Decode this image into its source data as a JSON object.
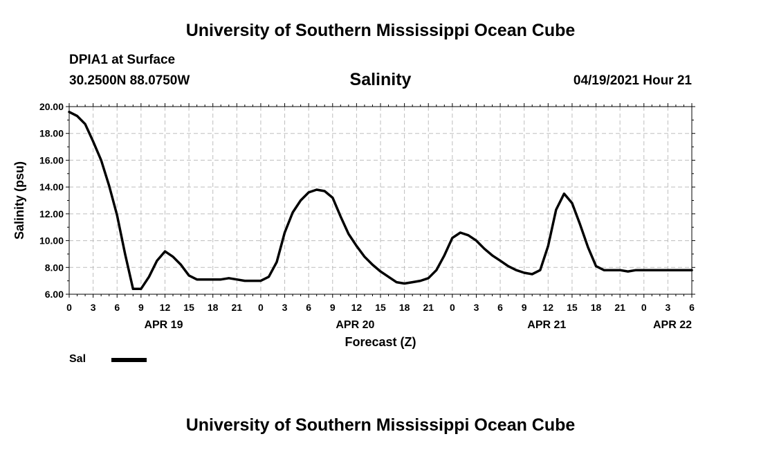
{
  "header": {
    "title_top": "University of Southern Mississippi Ocean Cube",
    "station": "DPIA1 at Surface",
    "coords": "30.2500N  88.0750W",
    "variable": "Salinity",
    "datetime": "04/19/2021 Hour 21",
    "title_bottom": "University of Southern Mississippi Ocean Cube"
  },
  "legend": {
    "label": "Sal",
    "color": "#000000"
  },
  "chart_data": {
    "type": "line",
    "title": "Salinity",
    "xlabel": "Forecast (Z)",
    "ylabel": "Salinity (psu)",
    "ylim": [
      6,
      20
    ],
    "xlim": [
      0,
      78
    ],
    "x_unit": "hours since 04/19/2021 00Z",
    "grid": true,
    "yticks": [
      "6.00",
      "8.00",
      "10.00",
      "12.00",
      "14.00",
      "16.00",
      "18.00",
      "20.00"
    ],
    "xticks": [
      {
        "x": 0,
        "label": "0"
      },
      {
        "x": 3,
        "label": "3"
      },
      {
        "x": 6,
        "label": "6"
      },
      {
        "x": 9,
        "label": "9"
      },
      {
        "x": 12,
        "label": "12"
      },
      {
        "x": 15,
        "label": "15"
      },
      {
        "x": 18,
        "label": "18"
      },
      {
        "x": 21,
        "label": "21"
      },
      {
        "x": 24,
        "label": "0"
      },
      {
        "x": 27,
        "label": "3"
      },
      {
        "x": 30,
        "label": "6"
      },
      {
        "x": 33,
        "label": "9"
      },
      {
        "x": 36,
        "label": "12"
      },
      {
        "x": 39,
        "label": "15"
      },
      {
        "x": 42,
        "label": "18"
      },
      {
        "x": 45,
        "label": "21"
      },
      {
        "x": 48,
        "label": "0"
      },
      {
        "x": 51,
        "label": "3"
      },
      {
        "x": 54,
        "label": "6"
      },
      {
        "x": 57,
        "label": "9"
      },
      {
        "x": 60,
        "label": "12"
      },
      {
        "x": 63,
        "label": "15"
      },
      {
        "x": 66,
        "label": "18"
      },
      {
        "x": 69,
        "label": "21"
      },
      {
        "x": 72,
        "label": "0"
      },
      {
        "x": 75,
        "label": "3"
      },
      {
        "x": 78,
        "label": "6"
      }
    ],
    "day_labels": [
      {
        "x": 12,
        "label": "APR 19"
      },
      {
        "x": 36,
        "label": "APR 20"
      },
      {
        "x": 60,
        "label": "APR 21"
      },
      {
        "x": 78,
        "label": "APR 22"
      }
    ],
    "series": [
      {
        "name": "Sal",
        "x": [
          0,
          1,
          2,
          3,
          4,
          5,
          6,
          7,
          8,
          9,
          10,
          11,
          12,
          13,
          14,
          15,
          16,
          17,
          18,
          19,
          20,
          21,
          22,
          23,
          24,
          25,
          26,
          27,
          28,
          29,
          30,
          31,
          32,
          33,
          34,
          35,
          36,
          37,
          38,
          39,
          40,
          41,
          42,
          43,
          44,
          45,
          46,
          47,
          48,
          49,
          50,
          51,
          52,
          53,
          54,
          55,
          56,
          57,
          58,
          59,
          60,
          61,
          62,
          63,
          64,
          65,
          66,
          67,
          68,
          69,
          70,
          71,
          72,
          73,
          74,
          75,
          76,
          77,
          78
        ],
        "values": [
          19.6,
          19.3,
          18.7,
          17.4,
          16.0,
          14.1,
          11.9,
          9.0,
          6.4,
          6.4,
          7.3,
          8.5,
          9.2,
          8.8,
          8.2,
          7.4,
          7.1,
          7.1,
          7.1,
          7.1,
          7.2,
          7.1,
          7.0,
          7.0,
          7.0,
          7.3,
          8.4,
          10.6,
          12.1,
          13.0,
          13.6,
          13.8,
          13.7,
          13.2,
          11.8,
          10.5,
          9.6,
          8.8,
          8.2,
          7.7,
          7.3,
          6.9,
          6.8,
          6.9,
          7.0,
          7.2,
          7.8,
          8.9,
          10.2,
          10.6,
          10.4,
          10.0,
          9.4,
          8.9,
          8.5,
          8.1,
          7.8,
          7.6,
          7.5,
          7.8,
          9.6,
          12.3,
          13.5,
          12.8,
          11.2,
          9.5,
          8.1,
          7.8,
          7.8,
          7.8,
          7.7,
          7.8,
          7.8,
          7.8,
          7.8,
          7.8,
          7.8,
          7.8,
          7.8
        ],
        "color": "#000000"
      }
    ]
  }
}
